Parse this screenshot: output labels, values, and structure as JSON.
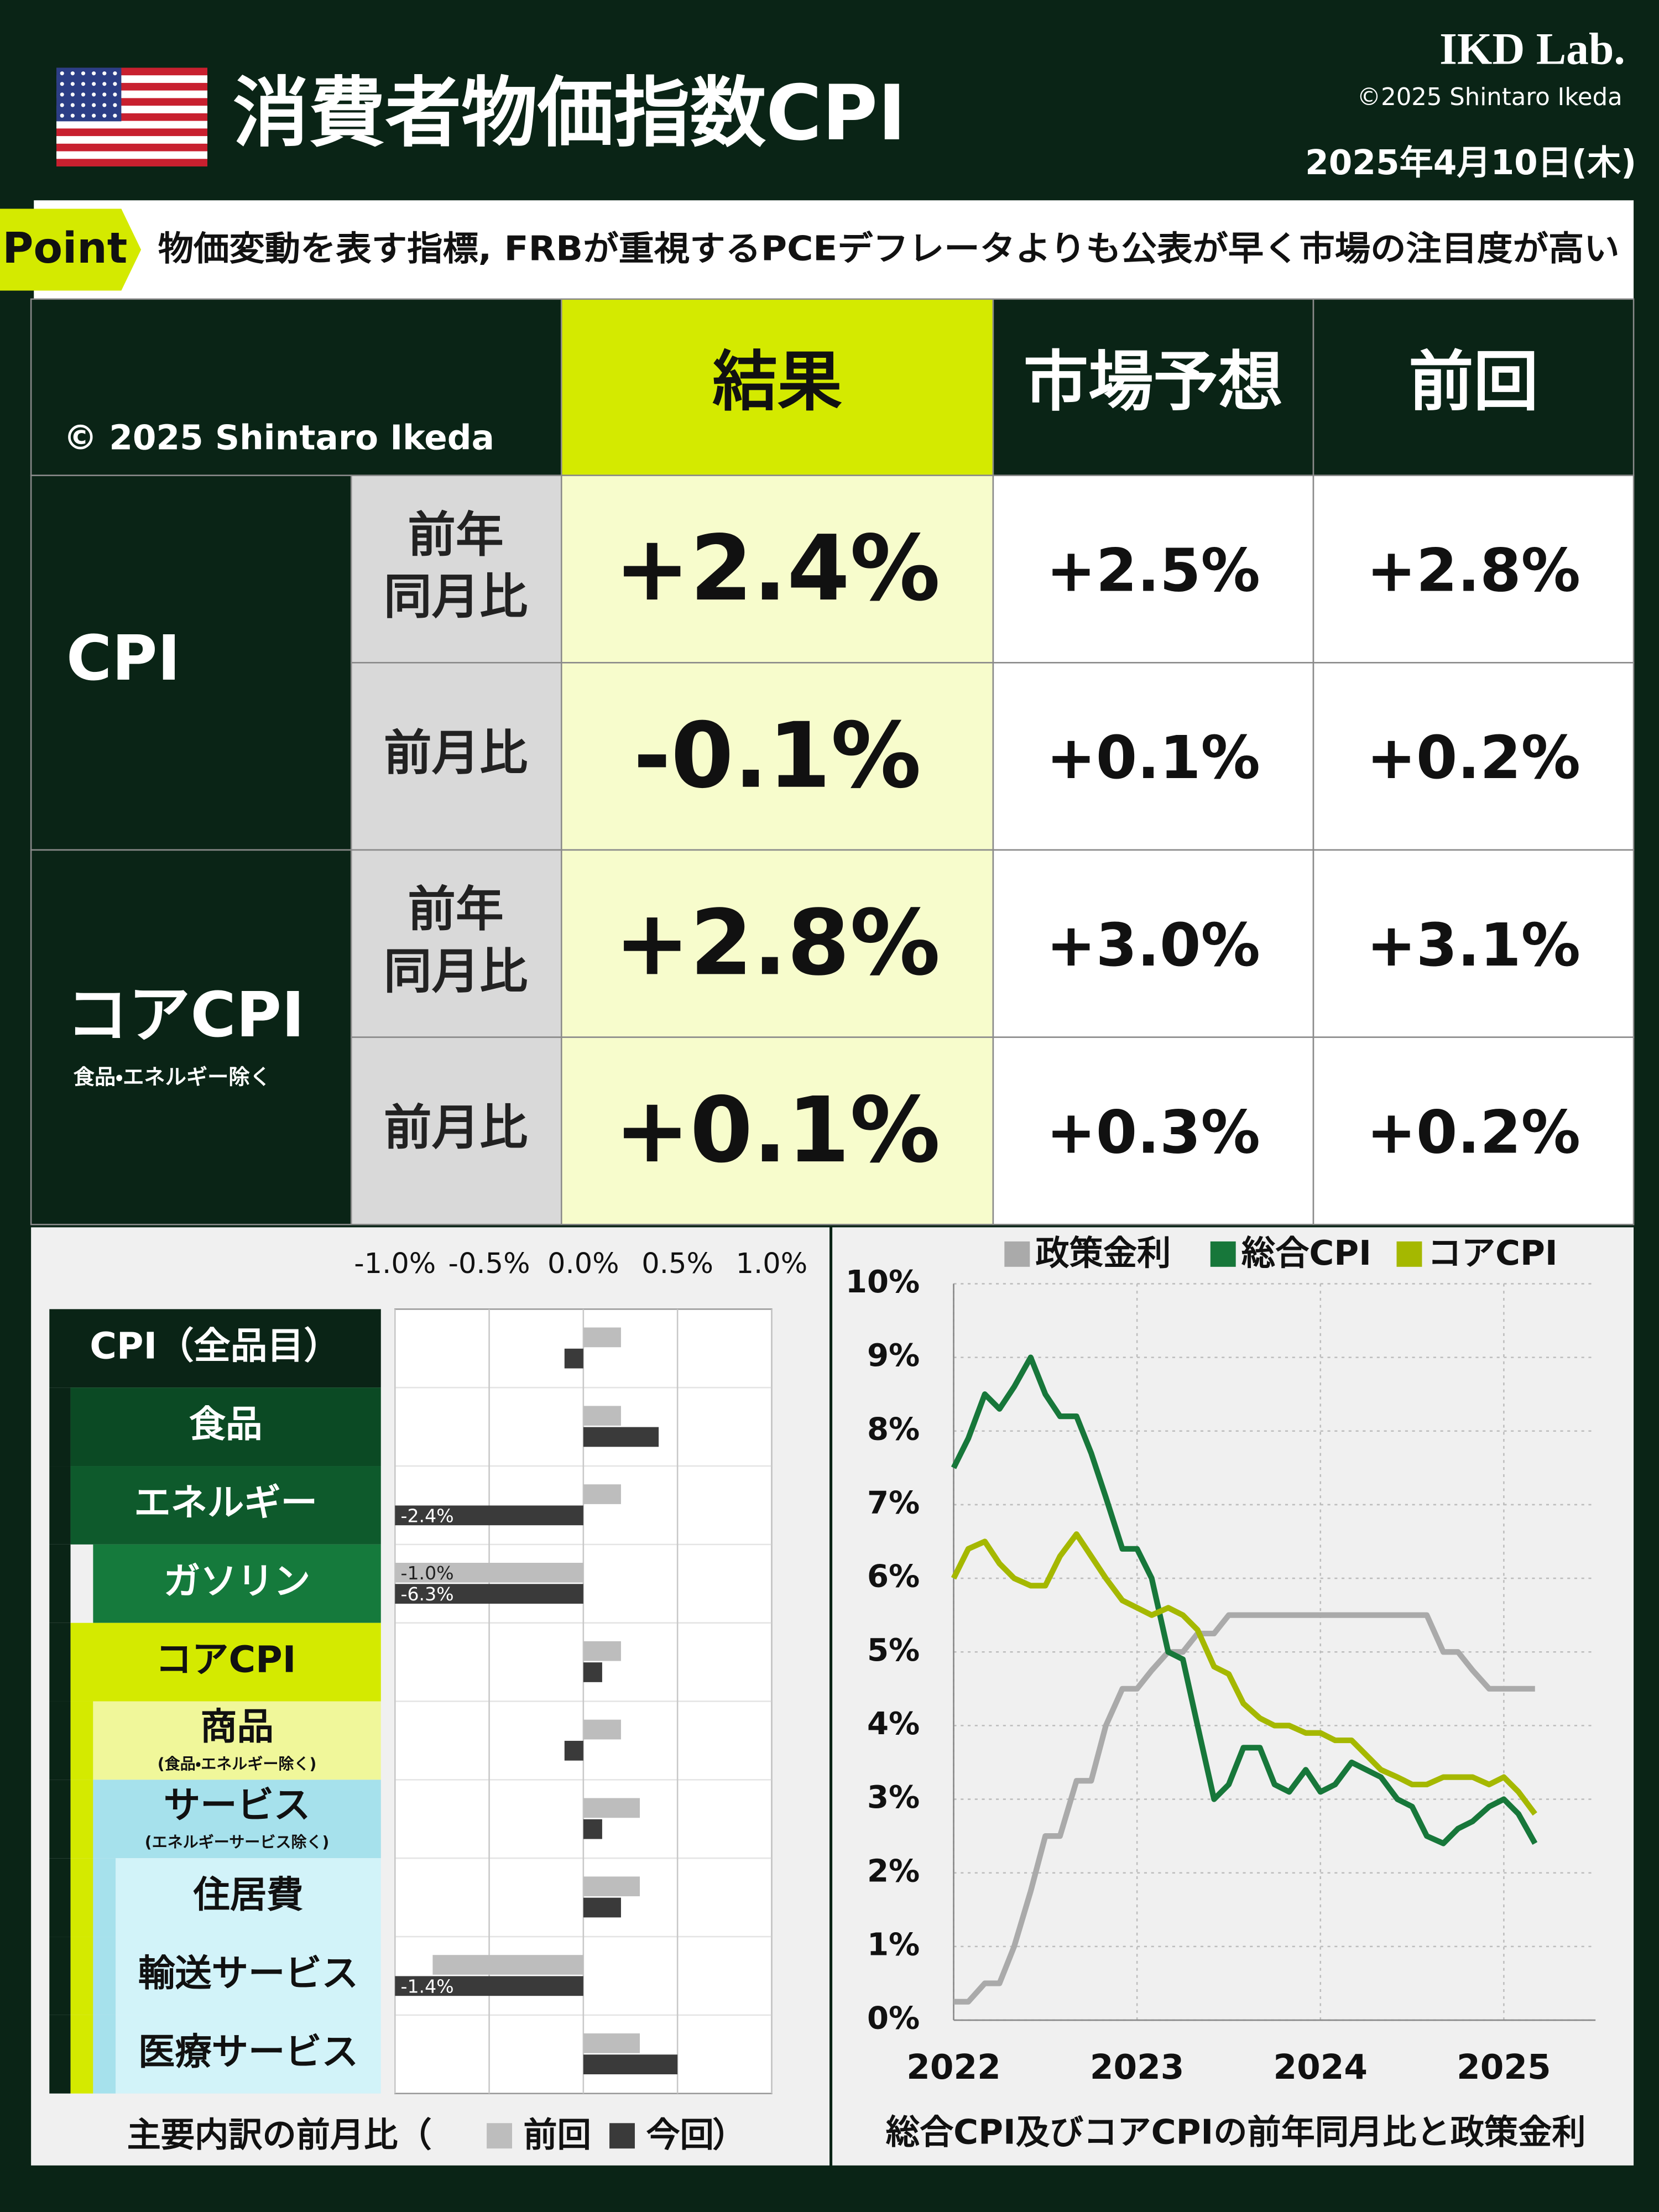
{
  "header": {
    "title": "消費者物価指数CPI",
    "brand": "IKD Lab.",
    "copyright": "©2025 Shintaro Ikeda",
    "date": "2025年4月10日(木)"
  },
  "point": {
    "label": "Point",
    "text": "物価変動を表す指標, FRBが重視するPCEデフレータよりも公表が早く市場の注目度が高い"
  },
  "table": {
    "corner": "© 2025 Shintaro Ikeda",
    "columns": [
      "結果",
      "市場予想",
      "前回"
    ],
    "groups": [
      {
        "name": "CPI",
        "rows": [
          {
            "label": [
              "前年",
              "同月比"
            ],
            "cells": [
              "+2.4%",
              "+2.5%",
              "+2.8%"
            ]
          },
          {
            "label": [
              "前月比"
            ],
            "cells": [
              "-0.1%",
              "+0.1%",
              "+0.2%"
            ]
          }
        ]
      },
      {
        "name": "コアCPI",
        "note": "食品・エネルギー除く",
        "rows": [
          {
            "label": [
              "前年",
              "同月比"
            ],
            "cells": [
              "+2.8%",
              "+3.0%",
              "+3.1%"
            ]
          },
          {
            "label": [
              "前月比"
            ],
            "cells": [
              "+0.1%",
              "+0.3%",
              "+0.2%"
            ]
          }
        ]
      }
    ]
  },
  "chart_data": [
    {
      "type": "hbar",
      "title": "主要内訳の前月比（",
      "title_suffix": "）",
      "categories": [
        "CPI（全品目）",
        "食品",
        "エネルギー",
        "ガソリン",
        "コアCPI",
        "商品",
        "サービス",
        "住居費",
        "輸送サービス",
        "医療サービス"
      ],
      "category_notes": [
        null,
        null,
        null,
        null,
        null,
        "(食品・エネルギー除く)",
        "(エネルギーサービス除く)",
        null,
        null,
        null
      ],
      "series": [
        {
          "name": "前回",
          "color": "#bdbdbd",
          "values": [
            0.2,
            0.2,
            0.2,
            -1.0,
            0.2,
            0.2,
            0.3,
            0.3,
            -0.8,
            0.3
          ],
          "value_labels": [
            null,
            null,
            null,
            "-1.0%",
            null,
            null,
            null,
            null,
            null,
            null
          ]
        },
        {
          "name": "今回",
          "color": "#3a3a3a",
          "values": [
            -0.1,
            0.4,
            -2.4,
            -6.3,
            0.1,
            -0.1,
            0.1,
            0.2,
            -1.4,
            0.5
          ],
          "value_labels": [
            null,
            null,
            "-2.4%",
            "-6.3%",
            null,
            null,
            null,
            null,
            "-1.4%",
            null
          ]
        }
      ],
      "xlim": [
        -1.0,
        1.0
      ],
      "xticks": [
        {
          "value": -1.0,
          "label": "-1.0%"
        },
        {
          "value": -0.5,
          "label": "-0.5%"
        },
        {
          "value": 0.0,
          "label": "0.0%"
        },
        {
          "value": 0.5,
          "label": "0.5%"
        },
        {
          "value": 1.0,
          "label": "1.0%"
        }
      ],
      "grid": true
    },
    {
      "type": "line",
      "title": "総合CPI及びコアCPIの前年同月比と政策金利",
      "x": [
        2022,
        2022.08,
        2022.17,
        2022.25,
        2022.33,
        2022.42,
        2022.5,
        2022.58,
        2022.67,
        2022.75,
        2022.83,
        2022.92,
        2023,
        2023.08,
        2023.17,
        2023.25,
        2023.33,
        2023.42,
        2023.5,
        2023.58,
        2023.67,
        2023.75,
        2023.83,
        2023.92,
        2024,
        2024.08,
        2024.17,
        2024.25,
        2024.33,
        2024.42,
        2024.5,
        2024.58,
        2024.67,
        2024.75,
        2024.83,
        2024.92,
        2025,
        2025.08,
        2025.17
      ],
      "series": [
        {
          "name": "政策金利",
          "color": "#aaaaaa",
          "values": [
            0.25,
            0.25,
            0.5,
            0.5,
            1.0,
            1.75,
            2.5,
            2.5,
            3.25,
            3.25,
            4.0,
            4.5,
            4.5,
            4.75,
            5.0,
            5.0,
            5.25,
            5.25,
            5.5,
            5.5,
            5.5,
            5.5,
            5.5,
            5.5,
            5.5,
            5.5,
            5.5,
            5.5,
            5.5,
            5.5,
            5.5,
            5.5,
            5.0,
            5.0,
            4.75,
            4.5,
            4.5,
            4.5,
            4.5
          ]
        },
        {
          "name": "総合CPI",
          "color": "#17773a",
          "values": [
            7.5,
            7.9,
            8.5,
            8.3,
            8.6,
            9.0,
            8.5,
            8.2,
            8.2,
            7.7,
            7.1,
            6.4,
            6.4,
            6.0,
            5.0,
            4.9,
            4.0,
            3.0,
            3.2,
            3.7,
            3.7,
            3.2,
            3.1,
            3.4,
            3.1,
            3.2,
            3.5,
            3.4,
            3.3,
            3.0,
            2.9,
            2.5,
            2.4,
            2.6,
            2.7,
            2.9,
            3.0,
            2.8,
            2.4
          ]
        },
        {
          "name": "コアCPI",
          "color": "#a5b800",
          "values": [
            6.0,
            6.4,
            6.5,
            6.2,
            6.0,
            5.9,
            5.9,
            6.3,
            6.6,
            6.3,
            6.0,
            5.7,
            5.6,
            5.5,
            5.6,
            5.5,
            5.3,
            4.8,
            4.7,
            4.3,
            4.1,
            4.0,
            4.0,
            3.9,
            3.9,
            3.8,
            3.8,
            3.6,
            3.4,
            3.3,
            3.2,
            3.2,
            3.3,
            3.3,
            3.3,
            3.2,
            3.3,
            3.1,
            2.8
          ]
        }
      ],
      "xlim": [
        2022,
        2025.5
      ],
      "xticks": [
        2022,
        2023,
        2024,
        2025
      ],
      "ylim": [
        0,
        10
      ],
      "yticks": [
        {
          "value": 0,
          "label": "0%"
        },
        {
          "value": 1,
          "label": "1%"
        },
        {
          "value": 2,
          "label": "2%"
        },
        {
          "value": 3,
          "label": "3%"
        },
        {
          "value": 4,
          "label": "4%"
        },
        {
          "value": 5,
          "label": "5%"
        },
        {
          "value": 6,
          "label": "6%"
        },
        {
          "value": 7,
          "label": "7%"
        },
        {
          "value": 8,
          "label": "8%"
        },
        {
          "value": 9,
          "label": "9%"
        },
        {
          "value": 10,
          "label": "10%"
        }
      ],
      "grid": true
    }
  ]
}
